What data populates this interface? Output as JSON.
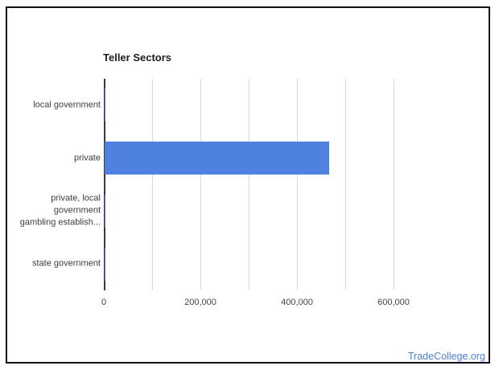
{
  "frame": {
    "background": "#ffffff",
    "border_color": "#111111"
  },
  "colors": {
    "bar": "#4f81e0",
    "gridline": "#d9d9d9",
    "axis_line": "#3a3a3a",
    "title_text": "#1c1c1c",
    "label_text": "#3d3d3d",
    "tick_text": "#444444",
    "link": "#4e80d8"
  },
  "branding": {
    "link_label": "TradeCollege.org"
  },
  "chart_data": {
    "type": "bar",
    "orientation": "horizontal",
    "title": "Teller Sectors",
    "categories": [
      "local government",
      "private",
      "private, local government gambling establish...",
      "state government"
    ],
    "category_display_lines": [
      "local government",
      "private",
      "private, local\ngovernment\ngambling establish...",
      "state government"
    ],
    "values": [
      2000,
      465000,
      1500,
      1000
    ],
    "values_note": "approximate, read from bar pixel widths; private ~465,000, other sectors near 0",
    "x_ticks": {
      "values": [
        0,
        200000,
        400000,
        600000
      ],
      "labels": [
        "0",
        "200,000",
        "400,000",
        "600,000"
      ]
    },
    "minor_gridlines": [
      100000,
      200000,
      300000,
      400000,
      500000,
      600000
    ],
    "xlim": [
      0,
      693000
    ],
    "xlabel": "",
    "ylabel": "",
    "legend": "none",
    "grid": true
  }
}
